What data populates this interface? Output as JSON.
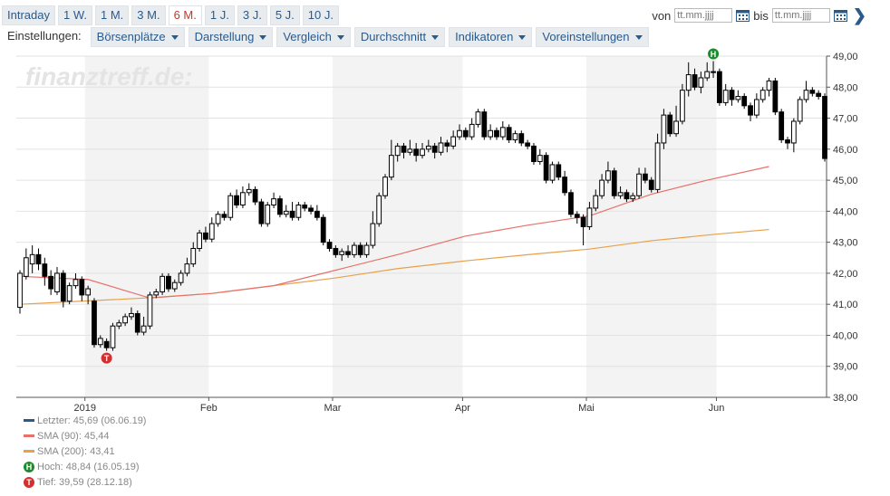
{
  "range_tabs": [
    {
      "label": "Intraday",
      "active": false
    },
    {
      "label": "1 W.",
      "active": false
    },
    {
      "label": "1 M.",
      "active": false
    },
    {
      "label": "3 M.",
      "active": false
    },
    {
      "label": "6 M.",
      "active": true
    },
    {
      "label": "1 J.",
      "active": false
    },
    {
      "label": "3 J.",
      "active": false
    },
    {
      "label": "5 J.",
      "active": false
    },
    {
      "label": "10 J.",
      "active": false
    }
  ],
  "daterange": {
    "from_label": "von",
    "to_label": "bis",
    "from_placeholder": "tt.mm.jjjj",
    "to_placeholder": "tt.mm.jjjj",
    "calendar_icon": "calendar-icon",
    "next_icon": "chevron-right-icon"
  },
  "settings": {
    "label": "Einstellungen:",
    "menus": [
      "Börsenplätze",
      "Darstellung",
      "Vergleich",
      "Durchschnitt",
      "Indikatoren",
      "Voreinstellungen"
    ]
  },
  "colors": {
    "accent": "#2a5a8c",
    "active_tab": "#c0392b",
    "sma90": "#e8706a",
    "sma200": "#e8a04a",
    "last": "#2a5a8c",
    "high": "#1e8a2e",
    "low": "#d32f2f"
  },
  "watermark": "finanztreff.de:",
  "chart_data": {
    "type": "candlestick",
    "title": "",
    "xlabel": "",
    "ylabel": "",
    "ylim": [
      38,
      49
    ],
    "y_ticks": [
      "49,00",
      "48,00",
      "47,00",
      "46,00",
      "45,00",
      "44,00",
      "43,00",
      "42,00",
      "41,00",
      "40,00",
      "39,00",
      "38,00"
    ],
    "x_ticks": [
      "2019",
      "Feb",
      "Mar",
      "Apr",
      "Mai",
      "Jun"
    ],
    "grid": true,
    "month_start_index": [
      11,
      31,
      51,
      72,
      92,
      113
    ],
    "candles": [
      [
        40.9,
        42.0,
        40.7,
        42.1
      ],
      [
        41.9,
        42.5,
        41.8,
        42.8
      ],
      [
        42.3,
        42.6,
        42.0,
        42.9
      ],
      [
        42.6,
        42.3,
        42.1,
        42.8
      ],
      [
        42.3,
        41.9,
        41.6,
        42.5
      ],
      [
        41.9,
        41.5,
        41.3,
        42.1
      ],
      [
        41.4,
        42.0,
        41.3,
        42.2
      ],
      [
        42.0,
        41.1,
        40.9,
        42.1
      ],
      [
        41.1,
        41.6,
        41.0,
        41.7
      ],
      [
        41.6,
        41.8,
        41.5,
        42.0
      ],
      [
        41.8,
        41.3,
        41.1,
        41.9
      ],
      [
        41.3,
        41.5,
        41.0,
        41.6
      ],
      [
        41.1,
        39.7,
        39.6,
        41.2
      ],
      [
        39.7,
        39.9,
        39.6,
        40.0
      ],
      [
        39.8,
        39.6,
        39.5,
        39.9
      ],
      [
        39.6,
        40.3,
        39.5,
        40.4
      ],
      [
        40.3,
        40.4,
        40.2,
        40.5
      ],
      [
        40.4,
        40.6,
        40.3,
        40.7
      ],
      [
        40.6,
        40.7,
        40.5,
        40.9
      ],
      [
        40.7,
        40.1,
        40.0,
        40.8
      ],
      [
        40.1,
        40.3,
        40.0,
        40.6
      ],
      [
        40.3,
        41.3,
        40.2,
        41.4
      ],
      [
        41.3,
        41.4,
        41.2,
        41.5
      ],
      [
        41.4,
        41.9,
        41.3,
        42.0
      ],
      [
        41.9,
        41.5,
        41.4,
        42.0
      ],
      [
        41.5,
        41.7,
        41.4,
        41.8
      ],
      [
        41.7,
        42.0,
        41.6,
        42.1
      ],
      [
        42.0,
        42.3,
        41.9,
        42.5
      ],
      [
        42.3,
        42.8,
        42.2,
        43.0
      ],
      [
        42.8,
        43.3,
        42.7,
        43.4
      ],
      [
        43.3,
        43.1,
        43.0,
        43.5
      ],
      [
        43.1,
        43.6,
        43.0,
        43.8
      ],
      [
        43.6,
        43.9,
        43.5,
        44.0
      ],
      [
        43.9,
        43.8,
        43.7,
        44.0
      ],
      [
        43.8,
        44.5,
        43.7,
        44.6
      ],
      [
        44.5,
        44.2,
        44.1,
        44.7
      ],
      [
        44.2,
        44.6,
        44.1,
        44.8
      ],
      [
        44.6,
        44.7,
        44.5,
        44.9
      ],
      [
        44.7,
        44.3,
        44.2,
        44.8
      ],
      [
        44.3,
        43.6,
        43.5,
        44.4
      ],
      [
        43.6,
        44.2,
        43.5,
        44.3
      ],
      [
        44.2,
        44.4,
        44.1,
        44.6
      ],
      [
        44.4,
        43.9,
        43.8,
        44.5
      ],
      [
        43.9,
        44.0,
        43.8,
        44.2
      ],
      [
        44.0,
        43.8,
        43.7,
        44.3
      ],
      [
        43.8,
        44.2,
        43.7,
        44.3
      ],
      [
        44.2,
        44.1,
        44.0,
        44.3
      ],
      [
        44.1,
        44.0,
        43.9,
        44.2
      ],
      [
        44.0,
        43.8,
        43.7,
        44.2
      ],
      [
        43.8,
        43.0,
        42.9,
        43.9
      ],
      [
        43.0,
        42.8,
        42.7,
        43.1
      ],
      [
        42.8,
        42.6,
        42.5,
        42.9
      ],
      [
        42.6,
        42.7,
        42.4,
        42.8
      ],
      [
        42.7,
        42.6,
        42.5,
        42.9
      ],
      [
        42.6,
        42.9,
        42.5,
        43.0
      ],
      [
        42.9,
        42.6,
        42.5,
        43.0
      ],
      [
        42.6,
        42.9,
        42.5,
        43.0
      ],
      [
        42.9,
        43.6,
        42.8,
        44.0
      ],
      [
        43.6,
        44.5,
        43.5,
        44.6
      ],
      [
        44.5,
        45.1,
        44.4,
        45.2
      ],
      [
        45.1,
        45.8,
        45.0,
        46.3
      ],
      [
        45.8,
        46.1,
        45.6,
        46.2
      ],
      [
        46.1,
        45.9,
        45.7,
        46.2
      ],
      [
        45.9,
        46.0,
        45.8,
        46.3
      ],
      [
        46.0,
        45.8,
        45.6,
        46.2
      ],
      [
        45.8,
        46.0,
        45.7,
        46.2
      ],
      [
        46.0,
        46.1,
        45.9,
        46.3
      ],
      [
        46.1,
        45.9,
        45.7,
        46.2
      ],
      [
        45.9,
        46.2,
        45.8,
        46.4
      ],
      [
        46.2,
        46.1,
        45.9,
        46.3
      ],
      [
        46.1,
        46.4,
        46.0,
        46.6
      ],
      [
        46.4,
        46.6,
        46.3,
        46.8
      ],
      [
        46.6,
        46.4,
        46.3,
        46.7
      ],
      [
        46.4,
        46.8,
        46.3,
        47.0
      ],
      [
        46.8,
        47.2,
        46.7,
        47.3
      ],
      [
        47.2,
        46.4,
        46.3,
        47.3
      ],
      [
        46.4,
        46.6,
        46.3,
        46.8
      ],
      [
        46.6,
        46.4,
        46.3,
        46.7
      ],
      [
        46.4,
        46.7,
        46.3,
        46.9
      ],
      [
        46.7,
        46.3,
        46.2,
        46.8
      ],
      [
        46.3,
        46.5,
        46.2,
        46.6
      ],
      [
        46.5,
        46.2,
        46.1,
        46.6
      ],
      [
        46.2,
        46.1,
        46.0,
        46.3
      ],
      [
        46.1,
        45.6,
        45.5,
        46.2
      ],
      [
        45.6,
        45.8,
        45.5,
        46.0
      ],
      [
        45.8,
        45.0,
        44.9,
        45.9
      ],
      [
        45.0,
        45.5,
        44.9,
        45.6
      ],
      [
        45.5,
        45.1,
        45.0,
        45.6
      ],
      [
        45.1,
        44.6,
        44.5,
        45.3
      ],
      [
        44.6,
        43.9,
        43.8,
        44.7
      ],
      [
        43.9,
        43.8,
        43.6,
        44.0
      ],
      [
        43.8,
        43.5,
        42.9,
        43.9
      ],
      [
        43.5,
        44.1,
        43.4,
        44.3
      ],
      [
        44.1,
        44.5,
        44.0,
        44.7
      ],
      [
        44.5,
        45.0,
        44.4,
        45.2
      ],
      [
        45.0,
        45.3,
        44.9,
        45.6
      ],
      [
        45.3,
        44.5,
        44.4,
        45.4
      ],
      [
        44.5,
        44.6,
        44.4,
        44.8
      ],
      [
        44.6,
        44.4,
        44.3,
        44.7
      ],
      [
        44.4,
        44.5,
        44.3,
        44.6
      ],
      [
        44.5,
        45.2,
        44.4,
        45.4
      ],
      [
        45.2,
        45.0,
        44.9,
        45.4
      ],
      [
        45.0,
        44.7,
        44.6,
        45.1
      ],
      [
        44.7,
        46.2,
        44.6,
        46.5
      ],
      [
        46.2,
        47.1,
        46.0,
        47.3
      ],
      [
        47.1,
        46.5,
        46.4,
        47.2
      ],
      [
        46.5,
        46.9,
        46.4,
        47.4
      ],
      [
        46.9,
        47.9,
        46.8,
        48.1
      ],
      [
        47.9,
        48.4,
        47.7,
        48.8
      ],
      [
        48.4,
        48.0,
        47.9,
        48.6
      ],
      [
        48.0,
        48.3,
        47.8,
        48.5
      ],
      [
        48.3,
        48.5,
        48.2,
        48.8
      ],
      [
        48.5,
        48.5,
        48.3,
        48.84
      ],
      [
        48.5,
        47.5,
        47.4,
        48.6
      ],
      [
        47.5,
        47.9,
        47.4,
        48.1
      ],
      [
        47.9,
        47.6,
        47.4,
        48.0
      ],
      [
        47.6,
        47.7,
        47.5,
        47.9
      ],
      [
        47.7,
        47.4,
        47.3,
        47.8
      ],
      [
        47.4,
        47.1,
        46.9,
        47.5
      ],
      [
        47.1,
        47.6,
        47.0,
        47.8
      ],
      [
        47.6,
        47.9,
        47.5,
        48.0
      ],
      [
        47.9,
        48.2,
        47.7,
        48.3
      ],
      [
        48.2,
        47.2,
        47.1,
        48.3
      ],
      [
        47.2,
        46.3,
        46.2,
        47.3
      ],
      [
        46.3,
        46.2,
        46.0,
        46.4
      ],
      [
        46.2,
        46.9,
        45.9,
        47.0
      ],
      [
        46.9,
        47.6,
        46.8,
        47.7
      ],
      [
        47.6,
        47.9,
        47.5,
        48.2
      ],
      [
        47.9,
        47.8,
        47.7,
        48.0
      ],
      [
        47.8,
        47.7,
        47.6,
        47.9
      ],
      [
        47.7,
        45.7,
        45.6,
        47.8
      ]
    ],
    "sma90": [
      [
        0,
        41.9
      ],
      [
        11,
        41.8
      ],
      [
        21,
        41.2
      ],
      [
        31,
        41.35
      ],
      [
        41,
        41.6
      ],
      [
        51,
        42.1
      ],
      [
        61,
        42.6
      ],
      [
        72,
        43.2
      ],
      [
        82,
        43.55
      ],
      [
        92,
        43.85
      ],
      [
        102,
        44.55
      ],
      [
        111,
        45.0
      ],
      [
        121,
        45.44
      ]
    ],
    "sma200": [
      [
        0,
        41.0
      ],
      [
        10,
        41.1
      ],
      [
        20,
        41.2
      ],
      [
        31,
        41.35
      ],
      [
        41,
        41.6
      ],
      [
        51,
        41.85
      ],
      [
        61,
        42.15
      ],
      [
        72,
        42.4
      ],
      [
        82,
        42.6
      ],
      [
        92,
        42.78
      ],
      [
        102,
        43.05
      ],
      [
        112,
        43.25
      ],
      [
        121,
        43.41
      ]
    ],
    "high_index": 112,
    "low_index": 14,
    "legend": [
      {
        "kind": "line",
        "color": "#2a5a8c",
        "text": "Letzter: 45,69 (06.06.19)"
      },
      {
        "kind": "line",
        "color": "#e8706a",
        "text": "SMA (90): 45,44"
      },
      {
        "kind": "line",
        "color": "#e8a04a",
        "text": "SMA (200): 43,41"
      },
      {
        "kind": "badge",
        "letter": "H",
        "color": "#1e8a2e",
        "text": "Hoch: 48,84 (16.05.19)"
      },
      {
        "kind": "badge",
        "letter": "T",
        "color": "#d32f2f",
        "text": "Tief: 39,59 (28.12.18)"
      }
    ]
  }
}
